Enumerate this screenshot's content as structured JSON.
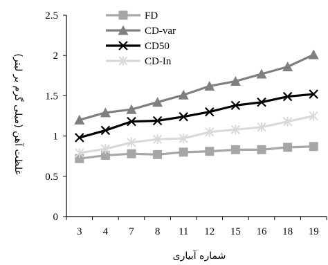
{
  "chart_data": {
    "type": "line",
    "xlabel": "شماره آبیاری",
    "ylabel": "غلظت آهن (میلی گرم بر لیتر)",
    "categories": [
      "3",
      "4",
      "7",
      "8",
      "11",
      "12",
      "15",
      "16",
      "18",
      "19"
    ],
    "ylim": [
      0,
      2.5
    ],
    "yticks": [
      0,
      0.5,
      1,
      1.5,
      2,
      2.5
    ],
    "ytick_labels": [
      "0",
      "0.5",
      "1",
      "1.5",
      "2",
      "2.5"
    ],
    "grid": false,
    "legend_position": "top-left",
    "series": [
      {
        "name": "FD",
        "color": "#a6a6a6",
        "marker": "square",
        "values": [
          0.72,
          0.76,
          0.78,
          0.77,
          0.8,
          0.81,
          0.83,
          0.83,
          0.86,
          0.87
        ]
      },
      {
        "name": "CD-var",
        "color": "#7f7f7f",
        "marker": "triangle",
        "values": [
          1.2,
          1.29,
          1.33,
          1.42,
          1.51,
          1.62,
          1.68,
          1.77,
          1.86,
          2.01
        ]
      },
      {
        "name": "CD50",
        "color": "#000000",
        "marker": "x",
        "values": [
          0.98,
          1.07,
          1.18,
          1.19,
          1.24,
          1.3,
          1.38,
          1.42,
          1.49,
          1.52
        ]
      },
      {
        "name": "CD-In",
        "color": "#d9d9d9",
        "marker": "star",
        "values": [
          0.79,
          0.84,
          0.92,
          0.96,
          0.97,
          1.05,
          1.08,
          1.11,
          1.18,
          1.25
        ]
      }
    ]
  }
}
